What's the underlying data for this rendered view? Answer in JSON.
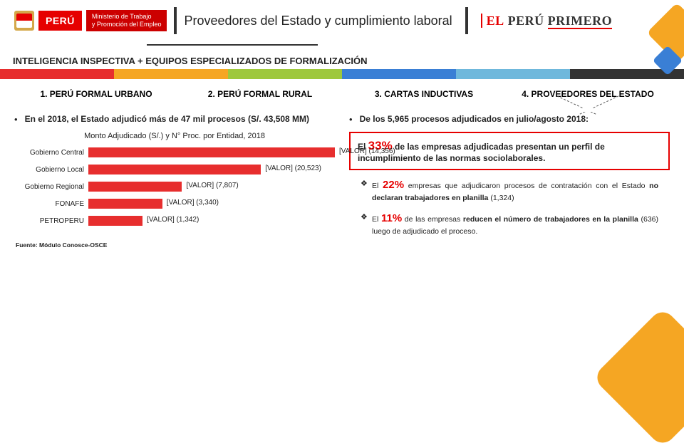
{
  "logo": {
    "peru_badge": "PERÚ",
    "ministerio_line1": "Ministerio de Trabajo",
    "ministerio_line2": "y Promoción del Empleo"
  },
  "title": "Proveedores del Estado y cumplimiento laboral",
  "slogan": {
    "el": "EL",
    "peru": "PERÚ",
    "primero": "PRIMERO"
  },
  "section": "INTELIGENCIA INSPECTIVA + EQUIPOS ESPECIALIZADOS DE FORMALIZACIÓN",
  "color_bar": [
    "#e72e2e",
    "#f5a623",
    "#9ec83c",
    "#3a7fd5",
    "#6fb8dc",
    "#333333"
  ],
  "headers": [
    {
      "label": "1. PERÚ FORMAL URBANO",
      "selected": false
    },
    {
      "label": "2. PERÚ FORMAL RURAL",
      "selected": false
    },
    {
      "label": "3. CARTAS INDUCTIVAS",
      "selected": false
    },
    {
      "label": "4. PROVEEDORES DEL ESTADO",
      "selected": true
    }
  ],
  "left": {
    "bullet": "En el 2018, el Estado adjudicó más de 47 mil procesos (S/. 43,508 MM)",
    "chart_title": "Monto Adjudicado (S/.) y N° Proc. por Entidad, 2018",
    "max_width": 260,
    "bars": [
      {
        "label": "Gobierno Central",
        "value": 14356,
        "display": "[VALOR] (14,356)",
        "color": "#e72e2e",
        "width_pct": 100
      },
      {
        "label": "Gobierno Local",
        "value": 20523,
        "display": "[VALOR] (20,523)",
        "color": "#e72e2e",
        "width_pct": 70
      },
      {
        "label": "Gobierno Regional",
        "value": 7807,
        "display": "[VALOR] (7,807)",
        "color": "#e72e2e",
        "width_pct": 38
      },
      {
        "label": "FONAFE",
        "value": 3340,
        "display": "[VALOR] (3,340)",
        "color": "#e72e2e",
        "width_pct": 30
      },
      {
        "label": "PETROPERU",
        "value": 1342,
        "display": "[VALOR] (1,342)",
        "color": "#e72e2e",
        "width_pct": 22
      }
    ],
    "source": "Fuente: Módulo Conosce-OSCE"
  },
  "right": {
    "bullet": "De los 5,965 procesos adjudicados en julio/agosto 2018:",
    "box": {
      "pre": "El ",
      "pct": "33%",
      "post": " de las empresas adjudicadas presentan un perfil de incumplimiento de las normas sociolaborales.",
      "pct_color": "#e60000"
    },
    "sub": [
      {
        "pre": "El ",
        "pct": "22%",
        "post": " empresas que adjudicaron procesos de contratación con el Estado ",
        "bold2": "no declaran trabajadores en planilla",
        "tail": " (1,324)",
        "pct_color": "#e60000"
      },
      {
        "pre": "El ",
        "pct": "11%",
        "post": " de las empresas ",
        "bold2": "reducen el número de trabajadores en la planilla",
        "tail": " (636) luego de adjudicado el proceso.",
        "pct_color": "#e60000"
      }
    ]
  }
}
